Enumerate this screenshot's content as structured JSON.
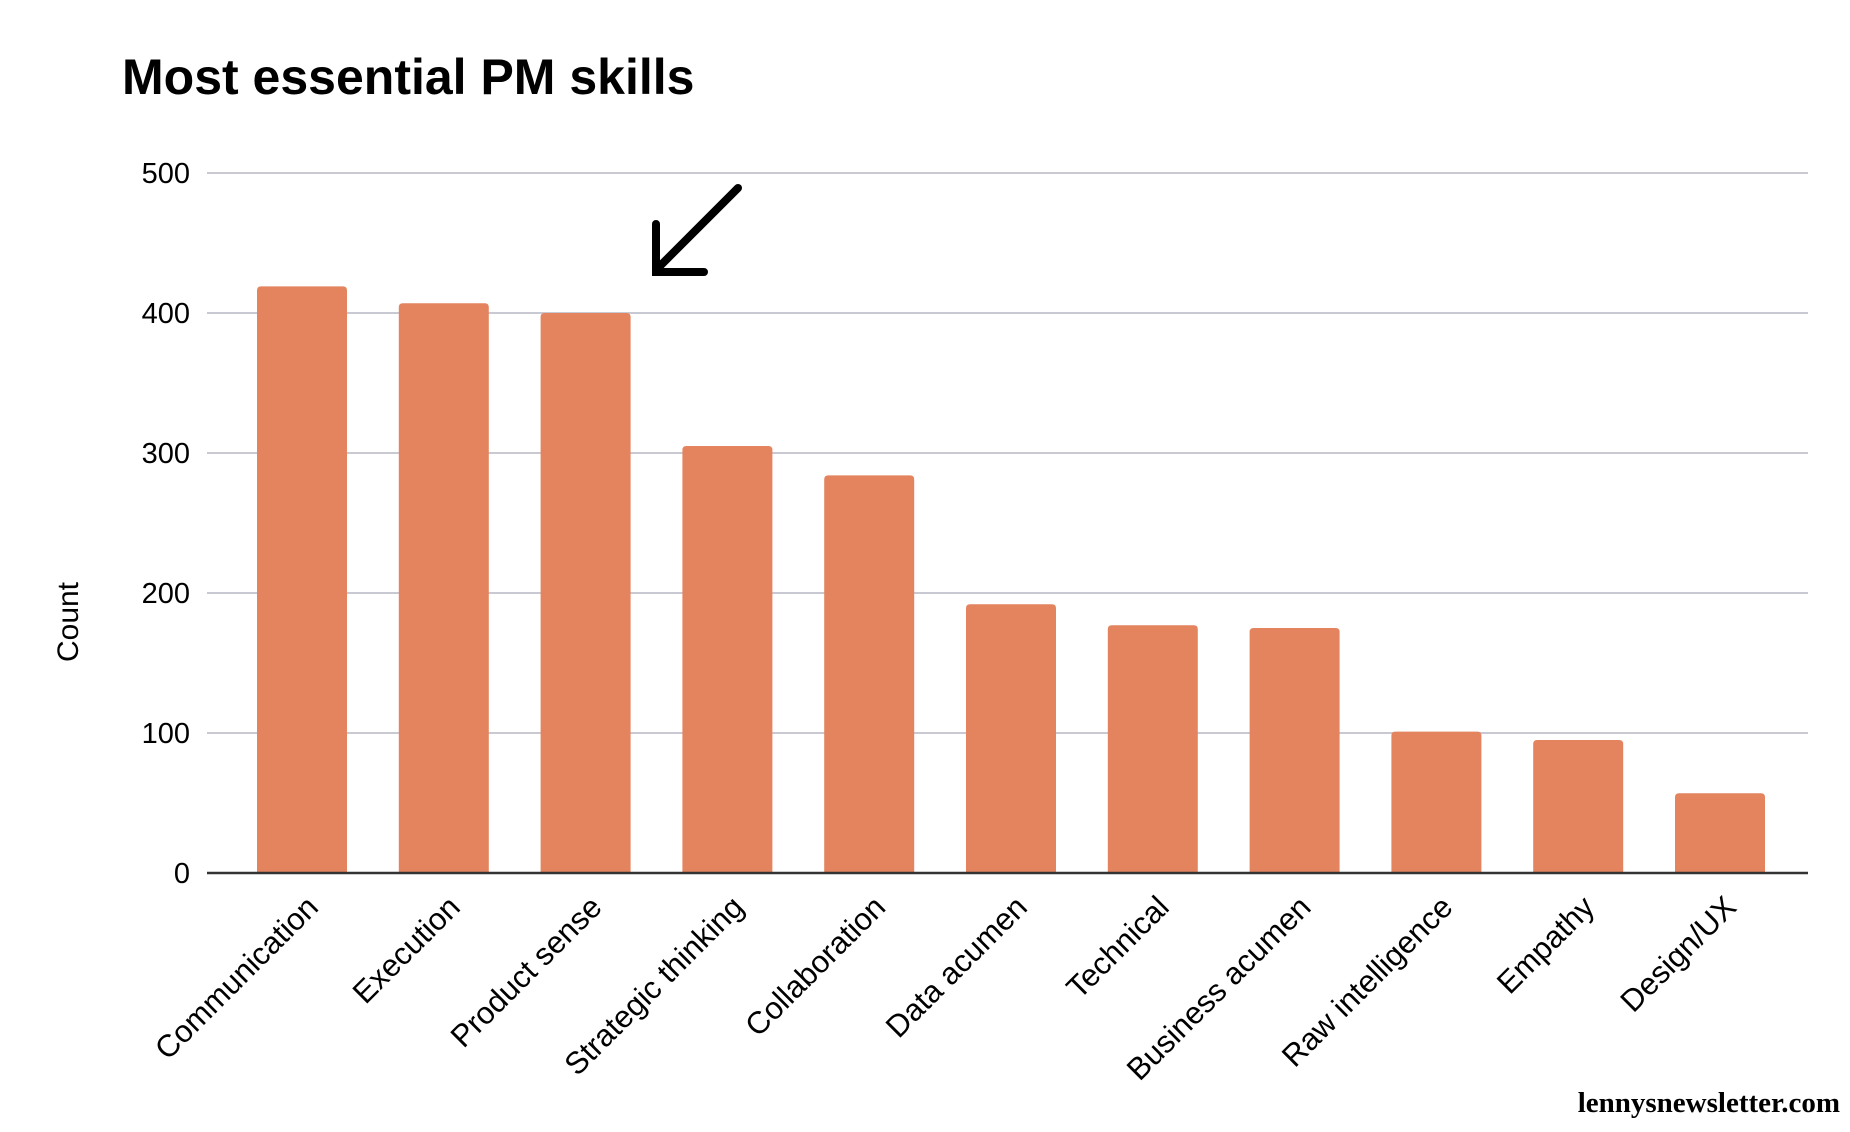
{
  "chart_data": {
    "type": "bar",
    "title": "Most essential PM skills",
    "xlabel": "",
    "ylabel": "Count",
    "categories": [
      "Communication",
      "Execution",
      "Product sense",
      "Strategic thinking",
      "Collaboration",
      "Data acumen",
      "Technical",
      "Business acumen",
      "Raw intelligence",
      "Empathy",
      "Design/UX"
    ],
    "values": [
      419,
      407,
      400,
      305,
      284,
      192,
      177,
      175,
      101,
      95,
      57
    ],
    "ylim": [
      0,
      500
    ],
    "yticks": [
      0,
      100,
      200,
      300,
      400,
      500
    ],
    "grid": true,
    "legend": "none",
    "bar_color": "#E4845F",
    "annotation": {
      "type": "arrow",
      "target": "Product sense",
      "color": "#000000"
    }
  },
  "credit": "lennysnewsletter.com"
}
